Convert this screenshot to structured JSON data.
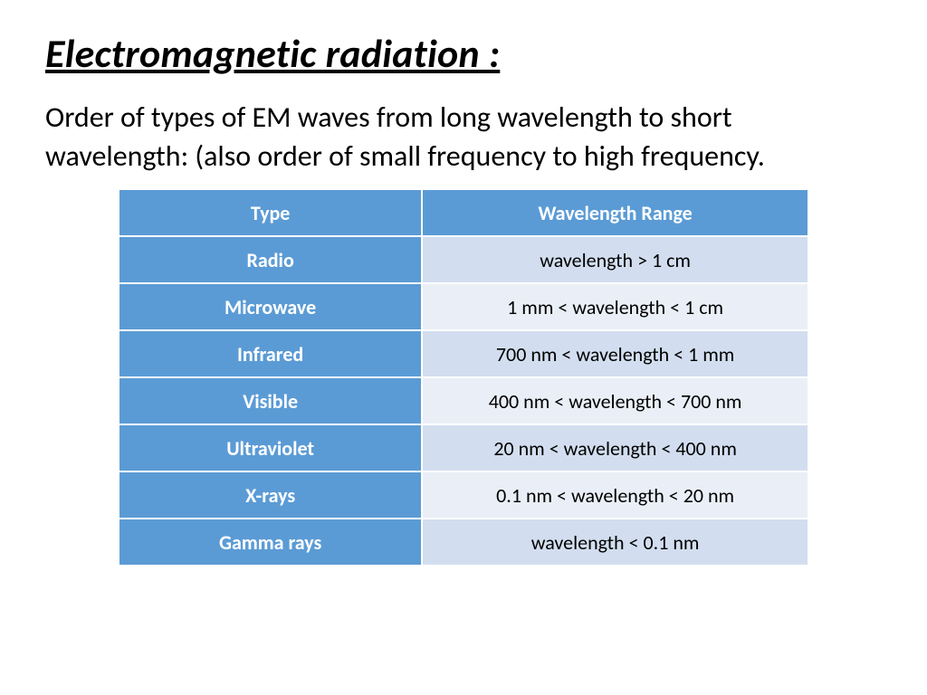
{
  "title": "Electromagnetic radiation :",
  "subtitle": "Order of types of EM waves from long wavelength to short wavelength: (also order of small frequency to high frequency.",
  "table": {
    "header_bg": "#5b9bd5",
    "type_col_bg": "#5b9bd5",
    "row_odd_range_bg": "#d2deef",
    "row_even_range_bg": "#eaeff7",
    "border_color": "#ffffff",
    "header_text_color": "#ffffff",
    "type_text_color": "#ffffff",
    "range_text_color": "#000000",
    "font_size_header": 22,
    "font_size_cell": 22,
    "columns": [
      "Type",
      "Wavelength Range"
    ],
    "rows": [
      {
        "type": "Radio",
        "range": "wavelength > 1 cm"
      },
      {
        "type": "Microwave",
        "range": "1 mm < wavelength < 1 cm"
      },
      {
        "type": "Infrared",
        "range": "700 nm < wavelength < 1 mm"
      },
      {
        "type": "Visible",
        "range": "400 nm < wavelength < 700 nm"
      },
      {
        "type": "Ultraviolet",
        "range": "20 nm < wavelength < 400 nm"
      },
      {
        "type": "X-rays",
        "range": "0.1 nm < wavelength < 20 nm"
      },
      {
        "type": "Gamma rays",
        "range": "wavelength < 0.1 nm"
      }
    ]
  }
}
